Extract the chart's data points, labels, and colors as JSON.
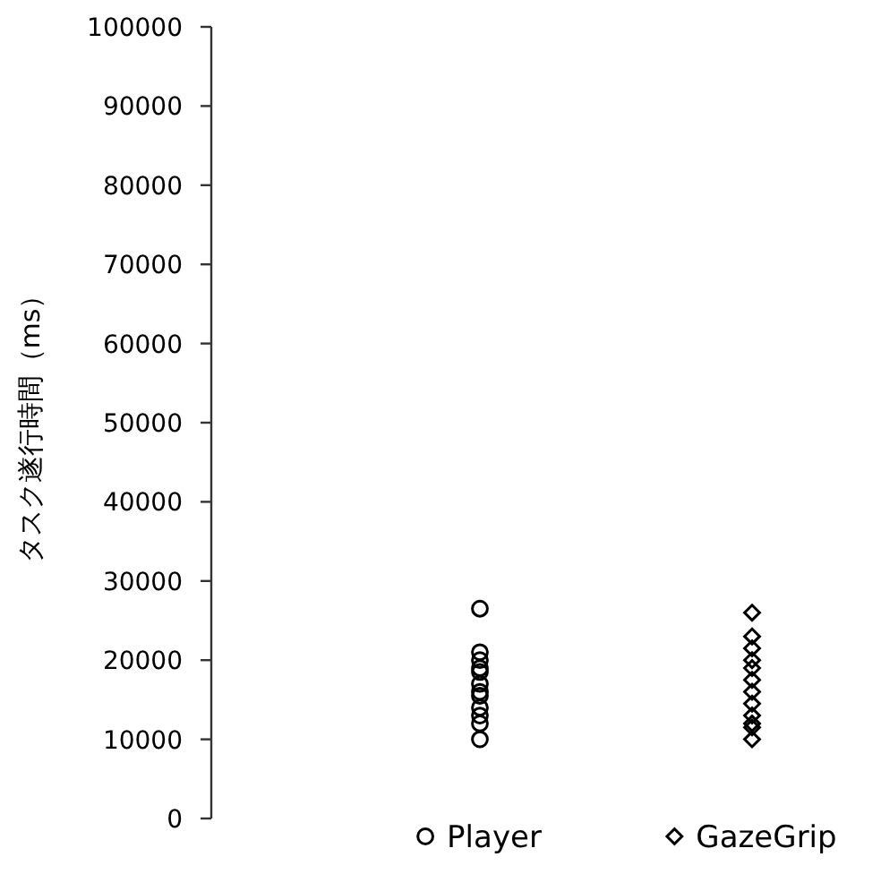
{
  "chart_data": {
    "type": "scatter",
    "ylabel": "タスク遂行時間（ms）",
    "categories": [
      "Player",
      "GazeGrip"
    ],
    "ylim": [
      0,
      100000
    ],
    "yticks": [
      0,
      10000,
      20000,
      30000,
      40000,
      50000,
      60000,
      70000,
      80000,
      90000,
      100000
    ],
    "grid": false,
    "series": [
      {
        "color": "#000000",
        "marker": "circle",
        "x": [
          "Player",
          "Player",
          "Player",
          "Player",
          "Player",
          "Player",
          "Player",
          "Player",
          "Player",
          "Player",
          "Player",
          "Player"
        ],
        "values": [
          26500,
          21000,
          20000,
          19000,
          18500,
          17000,
          16000,
          15500,
          14000,
          13000,
          12000,
          10000
        ]
      },
      {
        "color": "#000000",
        "marker": "diamond",
        "x": [
          "GazeGrip",
          "GazeGrip",
          "GazeGrip",
          "GazeGrip",
          "GazeGrip",
          "GazeGrip",
          "GazeGrip",
          "GazeGrip",
          "GazeGrip",
          "GazeGrip",
          "GazeGrip",
          "GazeGrip"
        ],
        "values": [
          26000,
          23000,
          21500,
          20000,
          19000,
          17500,
          16000,
          14500,
          13000,
          12000,
          11500,
          10000
        ]
      }
    ]
  }
}
